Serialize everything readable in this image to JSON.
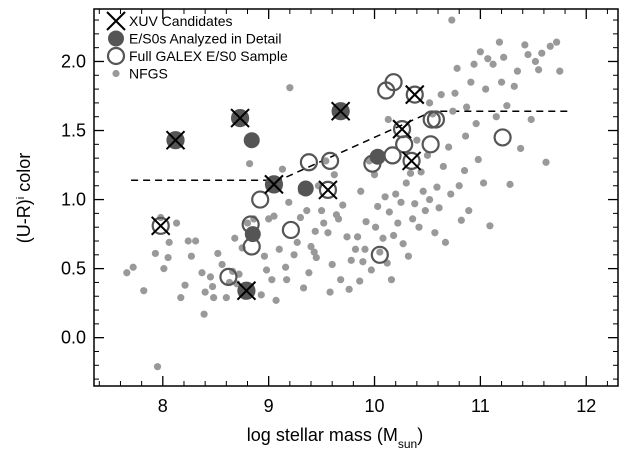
{
  "chart_data": {
    "type": "scatter",
    "title": "",
    "xlabel": "log stellar mass (M",
    "xlabel_sub": "sun",
    "xlabel_close": ")",
    "ylabel": "(U-R)",
    "ylabel_sup": "i",
    "ylabel_tail": " color",
    "xlim": [
      7.35,
      12.3
    ],
    "ylim": [
      -0.35,
      2.38
    ],
    "xticks": [
      8,
      9,
      10,
      11,
      12
    ],
    "xtick_labels": [
      "8",
      "9",
      "10",
      "11",
      "12"
    ],
    "yticks": [
      0.0,
      0.5,
      1.0,
      1.5,
      2.0
    ],
    "ytick_labels": [
      "0.0",
      "0.5",
      "1.0",
      "1.5",
      "2.0"
    ],
    "grid": false,
    "legend_position": "top-left",
    "legend": [
      {
        "label": "XUV Candidates",
        "marker": "x"
      },
      {
        "label": "E/S0s Analyzed in Detail",
        "marker": "filled-circle"
      },
      {
        "label": "Full GALEX E/S0 Sample",
        "marker": "open-circle"
      },
      {
        "label": "NFGS",
        "marker": "small-dot"
      }
    ],
    "colors": {
      "nfgs": "#999999",
      "detail": "#555555",
      "full_ring": "#555555",
      "xuv": "#000000",
      "dashed": "#000000"
    },
    "dashed_line": [
      [
        7.7,
        1.14
      ],
      [
        9.1,
        1.14
      ],
      [
        10.55,
        1.64
      ],
      [
        11.83,
        1.64
      ]
    ],
    "series": [
      {
        "name": "NFGS",
        "points": [
          [
            7.66,
            0.47
          ],
          [
            7.72,
            0.51
          ],
          [
            7.82,
            0.34
          ],
          [
            7.93,
            0.61
          ],
          [
            7.98,
            0.87
          ],
          [
            8.06,
            0.69
          ],
          [
            8.01,
            0.5
          ],
          [
            8.13,
            0.83
          ],
          [
            8.17,
            0.29
          ],
          [
            8.21,
            0.38
          ],
          [
            8.27,
            0.59
          ],
          [
            8.31,
            0.7
          ],
          [
            8.37,
            0.47
          ],
          [
            8.4,
            0.33
          ],
          [
            8.39,
            0.17
          ],
          [
            8.45,
            0.44
          ],
          [
            8.47,
            0.37
          ],
          [
            8.48,
            0.29
          ],
          [
            8.52,
            0.61
          ],
          [
            8.56,
            0.53
          ],
          [
            8.6,
            0.29
          ],
          [
            8.63,
            0.4
          ],
          [
            8.66,
            0.48
          ],
          [
            8.68,
            0.72
          ],
          [
            8.7,
            0.39
          ],
          [
            8.72,
            0.46
          ],
          [
            8.75,
            0.65
          ],
          [
            8.77,
            0.3
          ],
          [
            8.8,
            0.83
          ],
          [
            8.82,
            1.26
          ],
          [
            8.93,
            0.31
          ],
          [
            8.96,
            0.59
          ],
          [
            8.98,
            0.49
          ],
          [
            9.0,
            0.86
          ],
          [
            9.03,
            0.42
          ],
          [
            9.05,
            0.88
          ],
          [
            9.07,
            0.27
          ],
          [
            9.1,
            0.64
          ],
          [
            9.13,
            1.22
          ],
          [
            9.16,
            0.51
          ],
          [
            9.17,
            0.42
          ],
          [
            9.2,
            1.81
          ],
          [
            9.24,
            0.6
          ],
          [
            9.27,
            0.69
          ],
          [
            9.3,
            0.87
          ],
          [
            9.33,
            0.36
          ],
          [
            9.36,
            0.92
          ],
          [
            9.38,
            0.47
          ],
          [
            9.4,
            0.66
          ],
          [
            9.43,
            0.62
          ],
          [
            9.45,
            0.58
          ],
          [
            9.47,
            1.1
          ],
          [
            9.5,
            0.92
          ],
          [
            9.52,
            0.83
          ],
          [
            9.54,
            1.28
          ],
          [
            9.56,
            0.76
          ],
          [
            9.58,
            0.33
          ],
          [
            9.6,
            0.53
          ],
          [
            9.62,
            1.18
          ],
          [
            9.64,
            0.89
          ],
          [
            9.66,
            0.86
          ],
          [
            9.68,
            0.42
          ],
          [
            9.7,
            0.96
          ],
          [
            9.72,
            1.66
          ],
          [
            9.74,
            0.73
          ],
          [
            9.76,
            0.35
          ],
          [
            9.78,
            0.56
          ],
          [
            9.82,
            0.64
          ],
          [
            9.84,
            0.73
          ],
          [
            9.86,
            0.41
          ],
          [
            9.89,
            0.55
          ],
          [
            9.92,
            0.84
          ],
          [
            9.95,
            1.28
          ],
          [
            9.97,
            0.49
          ],
          [
            10.0,
            1.18
          ],
          [
            10.03,
            0.95
          ],
          [
            10.05,
            0.62
          ],
          [
            10.08,
            0.72
          ],
          [
            10.1,
            1.02
          ],
          [
            10.12,
            0.54
          ],
          [
            10.14,
            0.91
          ],
          [
            10.16,
            0.42
          ],
          [
            10.18,
            0.74
          ],
          [
            10.2,
            1.04
          ],
          [
            10.22,
            0.83
          ],
          [
            10.25,
            0.98
          ],
          [
            10.27,
            0.68
          ],
          [
            10.3,
            1.12
          ],
          [
            10.32,
            0.59
          ],
          [
            10.34,
            1.19
          ],
          [
            10.36,
            0.86
          ],
          [
            10.38,
            0.97
          ],
          [
            10.4,
            1.43
          ],
          [
            10.42,
            0.8
          ],
          [
            10.44,
            1.2
          ],
          [
            10.46,
            1.06
          ],
          [
            10.48,
            0.92
          ],
          [
            10.5,
            1.32
          ],
          [
            10.52,
            1.0
          ],
          [
            10.55,
            1.62
          ],
          [
            10.57,
            0.76
          ],
          [
            10.59,
            1.09
          ],
          [
            10.61,
            0.94
          ],
          [
            10.63,
            1.76
          ],
          [
            10.65,
            1.24
          ],
          [
            10.67,
            0.69
          ],
          [
            10.7,
            1.38
          ],
          [
            10.72,
            1.04
          ],
          [
            10.74,
            1.64
          ],
          [
            10.76,
            1.77
          ],
          [
            10.78,
            1.95
          ],
          [
            10.8,
            1.1
          ],
          [
            10.82,
            0.85
          ],
          [
            10.85,
            1.21
          ],
          [
            10.87,
            1.67
          ],
          [
            10.89,
            0.92
          ],
          [
            10.91,
            1.85
          ],
          [
            10.94,
            1.98
          ],
          [
            10.96,
            1.55
          ],
          [
            10.98,
            1.29
          ],
          [
            11.0,
            2.07
          ],
          [
            11.03,
            1.12
          ],
          [
            11.05,
            1.8
          ],
          [
            11.07,
            2.02
          ],
          [
            11.09,
            0.81
          ],
          [
            11.12,
            1.98
          ],
          [
            11.15,
            1.6
          ],
          [
            11.18,
            2.14
          ],
          [
            11.2,
            1.85
          ],
          [
            11.22,
            2.03
          ],
          [
            11.25,
            1.68
          ],
          [
            11.28,
            1.11
          ],
          [
            11.32,
            1.82
          ],
          [
            11.35,
            1.93
          ],
          [
            11.38,
            1.37
          ],
          [
            11.42,
            2.12
          ],
          [
            11.45,
            2.05
          ],
          [
            11.48,
            1.58
          ],
          [
            11.52,
            2.0
          ],
          [
            11.55,
            1.94
          ],
          [
            11.58,
            2.06
          ],
          [
            11.62,
            1.27
          ],
          [
            11.66,
            2.11
          ],
          [
            11.72,
            2.14
          ],
          [
            11.75,
            1.93
          ],
          [
            10.73,
            2.3
          ],
          [
            10.52,
            1.7
          ],
          [
            10.86,
            1.46
          ],
          [
            9.87,
            1.06
          ],
          [
            9.91,
            0.64
          ],
          [
            9.31,
            1.06
          ],
          [
            9.19,
            0.98
          ],
          [
            9.44,
            0.77
          ],
          [
            8.24,
            0.7
          ],
          [
            8.05,
            0.58
          ],
          [
            7.95,
            -0.21
          ],
          [
            10.13,
            1.58
          ],
          [
            10.01,
            0.8
          ],
          [
            8.86,
            0.86
          ]
        ]
      },
      {
        "name": "Full GALEX E/S0 Sample",
        "points": [
          [
            7.98,
            0.81
          ],
          [
            8.12,
            1.43
          ],
          [
            8.73,
            1.59
          ],
          [
            8.62,
            0.44
          ],
          [
            8.79,
            0.34
          ],
          [
            8.83,
            0.82
          ],
          [
            8.84,
            0.66
          ],
          [
            8.92,
            1.0
          ],
          [
            9.05,
            1.11
          ],
          [
            9.21,
            0.78
          ],
          [
            9.38,
            1.27
          ],
          [
            9.56,
            1.07
          ],
          [
            9.58,
            1.28
          ],
          [
            9.68,
            1.64
          ],
          [
            9.98,
            1.26
          ],
          [
            10.05,
            0.6
          ],
          [
            10.11,
            1.79
          ],
          [
            10.17,
            1.32
          ],
          [
            10.18,
            1.85
          ],
          [
            10.26,
            1.51
          ],
          [
            10.28,
            1.4
          ],
          [
            10.35,
            1.28
          ],
          [
            10.38,
            1.76
          ],
          [
            10.53,
            1.4
          ],
          [
            10.54,
            1.58
          ],
          [
            10.58,
            1.58
          ],
          [
            11.21,
            1.45
          ]
        ]
      },
      {
        "name": "E/S0s Analyzed in Detail",
        "points": [
          [
            8.12,
            1.43
          ],
          [
            8.73,
            1.59
          ],
          [
            8.84,
            1.43
          ],
          [
            8.79,
            0.34
          ],
          [
            8.85,
            0.75
          ],
          [
            9.05,
            1.11
          ],
          [
            9.35,
            1.08
          ],
          [
            9.68,
            1.64
          ],
          [
            10.03,
            1.31
          ]
        ]
      },
      {
        "name": "XUV Candidates",
        "points": [
          [
            7.98,
            0.81
          ],
          [
            8.12,
            1.43
          ],
          [
            8.73,
            1.59
          ],
          [
            8.79,
            0.34
          ],
          [
            9.05,
            1.11
          ],
          [
            9.56,
            1.07
          ],
          [
            9.68,
            1.64
          ],
          [
            10.26,
            1.51
          ],
          [
            10.35,
            1.28
          ],
          [
            10.38,
            1.76
          ]
        ]
      }
    ]
  }
}
